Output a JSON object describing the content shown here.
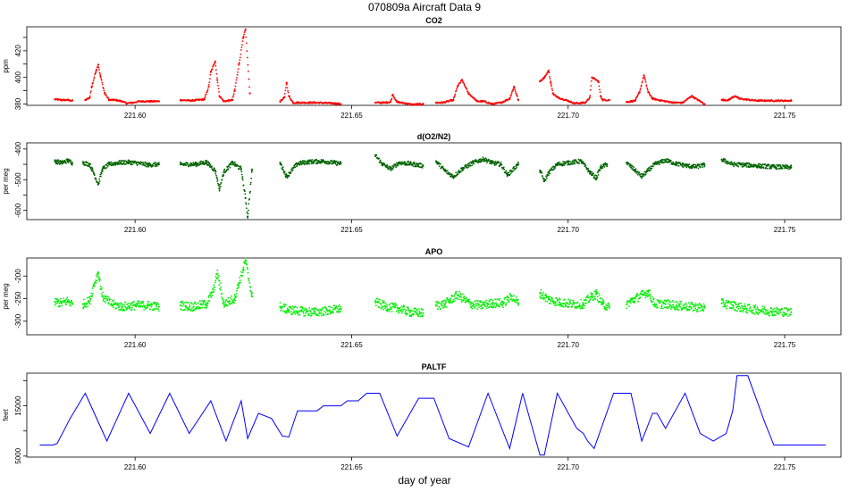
{
  "figure": {
    "title": "070809a   Aircraft Data 9",
    "xlabel": "day of year"
  },
  "chart_data": [
    {
      "type": "scatter",
      "title": "CO2",
      "ylabel": "ppm",
      "xlim": [
        221.575,
        221.763
      ],
      "ylim": [
        379.0,
        438.0
      ],
      "xticks": [
        221.6,
        221.65,
        221.7,
        221.75
      ],
      "xtick_labels": [
        "221.60",
        "221.65",
        "221.70",
        "221.75"
      ],
      "yticks": [
        380,
        400,
        420
      ],
      "ytick_labels": [
        "380",
        "400",
        "420"
      ],
      "yticks_minor": [
        390,
        410,
        430
      ],
      "color": "#ff0000",
      "series": [
        {
          "x": [
            221.5815,
            221.583,
            221.5845,
            221.5855
          ],
          "y": [
            383.5,
            383.0,
            383.0,
            382.5
          ]
        },
        {
          "x": [
            221.5885,
            221.5895,
            221.59,
            221.591,
            221.5915,
            221.592,
            221.593,
            221.594,
            221.5955,
            221.597,
            221.598,
            221.5995,
            221.601,
            221.603,
            221.6055
          ],
          "y": [
            383.0,
            384.5,
            393.0,
            405.0,
            409.5,
            401.0,
            388.0,
            383.0,
            383.0,
            382.0,
            380.5,
            381.0,
            382.0,
            382.0,
            382.0
          ]
        },
        {
          "x": [
            221.6105,
            221.613,
            221.616,
            221.617,
            221.6175,
            221.6185,
            221.619,
            221.6195,
            221.6205,
            221.6225,
            221.623,
            221.624,
            221.625,
            221.6255,
            221.6265
          ],
          "y": [
            383.0,
            382.5,
            383.5,
            393.0,
            404.0,
            412.0,
            398.0,
            386.0,
            382.0,
            383.0,
            390.0,
            410.0,
            430.0,
            436.0,
            388.0
          ]
        },
        {
          "x": [
            221.6335,
            221.6345,
            221.635,
            221.6355,
            221.6365,
            221.6385,
            221.642,
            221.646,
            221.6475
          ],
          "y": [
            382.0,
            385.0,
            396.0,
            386.0,
            381.0,
            381.0,
            381.0,
            380.5,
            380.0
          ]
        },
        {
          "x": [
            221.6555,
            221.6575,
            221.659,
            221.6595,
            221.6605,
            221.6625,
            221.664,
            221.6665
          ],
          "y": [
            381.0,
            381.0,
            381.5,
            387.0,
            381.5,
            380.5,
            379.5,
            380.0
          ]
        },
        {
          "x": [
            221.6695,
            221.671,
            221.6735,
            221.6745,
            221.6755,
            221.677,
            221.679,
            221.6805,
            221.6825,
            221.6845,
            221.6865,
            221.6875,
            221.6885
          ],
          "y": [
            381.0,
            381.0,
            383.0,
            393.5,
            398.0,
            388.0,
            382.0,
            382.0,
            380.0,
            381.0,
            384.0,
            393.0,
            383.0
          ]
        },
        {
          "x": [
            221.6935,
            221.6945,
            221.6955,
            221.696,
            221.6965,
            221.6975,
            221.6995,
            221.7015,
            221.704,
            221.705,
            221.7055,
            221.707,
            221.7075,
            221.708,
            221.7095
          ],
          "y": [
            397.0,
            400.0,
            405.0,
            396.0,
            388.0,
            385.0,
            383.0,
            380.5,
            381.0,
            385.0,
            400.0,
            397.0,
            386.0,
            383.0,
            383.0
          ]
        },
        {
          "x": [
            221.7135,
            221.7155,
            221.7165,
            221.7175,
            221.7185,
            221.7195,
            221.7225,
            221.7245,
            221.7265,
            221.7285,
            221.7315
          ],
          "y": [
            381.5,
            382.5,
            389.0,
            401.5,
            389.0,
            384.0,
            382.0,
            381.0,
            381.0,
            386.0,
            380.0
          ]
        },
        {
          "x": [
            221.7355,
            221.737,
            221.7385,
            221.7395,
            221.7435,
            221.748,
            221.7515
          ],
          "y": [
            383.0,
            383.0,
            386.0,
            384.0,
            382.5,
            382.5,
            382.5
          ]
        }
      ]
    },
    {
      "type": "scatter",
      "title": "d(O2/N2)",
      "ylabel": "per meg",
      "xlim": [
        221.575,
        221.763
      ],
      "ylim": [
        -630,
        -380
      ],
      "xticks": [
        221.6,
        221.65,
        221.7,
        221.75
      ],
      "xtick_labels": [
        "221.60",
        "221.65",
        "221.70",
        "221.75"
      ],
      "yticks": [
        -600,
        -500,
        -400
      ],
      "ytick_labels": [
        "-600",
        "-500",
        "-400"
      ],
      "yticks_minor": [
        -550,
        -450
      ],
      "color": "#006400",
      "series": [
        {
          "x": [
            221.5815,
            221.583,
            221.5845,
            221.5855
          ],
          "y": [
            -440,
            -445,
            -438,
            -445
          ]
        },
        {
          "x": [
            221.588,
            221.5895,
            221.5905,
            221.5915,
            221.5925,
            221.594,
            221.596,
            221.5985,
            221.601,
            221.603,
            221.6055
          ],
          "y": [
            -445,
            -450,
            -480,
            -515,
            -465,
            -450,
            -445,
            -443,
            -447,
            -452,
            -450
          ]
        },
        {
          "x": [
            221.6105,
            221.614,
            221.6165,
            221.6185,
            221.6195,
            221.6205,
            221.6225,
            221.6245,
            221.6255,
            221.626,
            221.627
          ],
          "y": [
            -450,
            -450,
            -443,
            -470,
            -530,
            -475,
            -445,
            -465,
            -560,
            -620,
            -470
          ]
        },
        {
          "x": [
            221.6335,
            221.635,
            221.6375,
            221.64,
            221.6435,
            221.646,
            221.6475
          ],
          "y": [
            -445,
            -490,
            -448,
            -442,
            -440,
            -445,
            -448
          ]
        },
        {
          "x": [
            221.6555,
            221.657,
            221.659,
            221.661,
            221.6635,
            221.6665
          ],
          "y": [
            -420,
            -448,
            -465,
            -445,
            -448,
            -455
          ]
        },
        {
          "x": [
            221.6695,
            221.6715,
            221.6735,
            221.6755,
            221.678,
            221.6805,
            221.6825,
            221.6845,
            221.686,
            221.6885
          ],
          "y": [
            -440,
            -470,
            -490,
            -465,
            -445,
            -433,
            -445,
            -450,
            -485,
            -450
          ]
        },
        {
          "x": [
            221.6935,
            221.6945,
            221.6955,
            221.6975,
            221.7,
            221.703,
            221.705,
            221.7065,
            221.7075,
            221.709
          ],
          "y": [
            -470,
            -505,
            -478,
            -450,
            -445,
            -440,
            -475,
            -495,
            -460,
            -450
          ]
        },
        {
          "x": [
            221.7135,
            221.7155,
            221.717,
            221.7185,
            221.72,
            221.7225,
            221.725,
            221.7275,
            221.7295,
            221.7315
          ],
          "y": [
            -445,
            -470,
            -490,
            -470,
            -450,
            -437,
            -448,
            -455,
            -458,
            -452
          ]
        },
        {
          "x": [
            221.7355,
            221.738,
            221.741,
            221.744,
            221.747,
            221.7515
          ],
          "y": [
            -435,
            -450,
            -452,
            -455,
            -458,
            -460
          ]
        }
      ]
    },
    {
      "type": "scatter",
      "title": "APO",
      "ylabel": "per meg",
      "xlim": [
        221.575,
        221.763
      ],
      "ylim": [
        -330,
        -160
      ],
      "xticks": [
        221.6,
        221.65,
        221.7,
        221.75
      ],
      "xtick_labels": [
        "221.60",
        "221.65",
        "221.70",
        "221.75"
      ],
      "yticks": [
        -300,
        -250,
        -200
      ],
      "ytick_labels": [
        "-300",
        "-250",
        "-200"
      ],
      "color": "#00ee00",
      "series": [
        {
          "x": [
            221.5815,
            221.583,
            221.5845,
            221.5855
          ],
          "y": [
            -257,
            -260,
            -255,
            -262
          ]
        },
        {
          "x": [
            221.588,
            221.5895,
            221.5905,
            221.5915,
            221.5925,
            221.5945,
            221.597,
            221.6,
            221.603,
            221.6055
          ],
          "y": [
            -262,
            -255,
            -220,
            -193,
            -245,
            -262,
            -268,
            -265,
            -265,
            -268
          ]
        },
        {
          "x": [
            221.6105,
            221.6135,
            221.6165,
            221.618,
            221.619,
            221.6205,
            221.623,
            221.624,
            221.625,
            221.6255,
            221.627
          ],
          "y": [
            -265,
            -268,
            -262,
            -235,
            -195,
            -262,
            -250,
            -215,
            -185,
            -165,
            -245
          ]
        },
        {
          "x": [
            221.6335,
            221.6355,
            221.6385,
            221.6415,
            221.6445,
            221.6475
          ],
          "y": [
            -268,
            -275,
            -278,
            -280,
            -277,
            -272
          ]
        },
        {
          "x": [
            221.6555,
            221.658,
            221.661,
            221.6635,
            221.6665
          ],
          "y": [
            -258,
            -268,
            -272,
            -280,
            -282
          ]
        },
        {
          "x": [
            221.6695,
            221.6715,
            221.6745,
            221.6775,
            221.68,
            221.6825,
            221.685,
            221.687,
            221.6885
          ],
          "y": [
            -265,
            -262,
            -242,
            -262,
            -265,
            -260,
            -260,
            -245,
            -260
          ]
        },
        {
          "x": [
            221.6935,
            221.6955,
            221.698,
            221.701,
            221.7035,
            221.7055,
            221.7065,
            221.708,
            221.7095
          ],
          "y": [
            -238,
            -252,
            -258,
            -262,
            -262,
            -245,
            -240,
            -262,
            -270
          ]
        },
        {
          "x": [
            221.7135,
            221.7155,
            221.7175,
            221.7185,
            221.72,
            221.7225,
            221.725,
            221.728,
            221.7315
          ],
          "y": [
            -262,
            -250,
            -240,
            -235,
            -262,
            -262,
            -265,
            -268,
            -270
          ]
        },
        {
          "x": [
            221.7355,
            221.738,
            221.741,
            221.744,
            221.747,
            221.7515
          ],
          "y": [
            -260,
            -265,
            -272,
            -275,
            -278,
            -280
          ]
        }
      ]
    },
    {
      "type": "line",
      "title": "PALTF",
      "ylabel": "feet",
      "xlim": [
        221.575,
        221.763
      ],
      "ylim": [
        4800,
        21500
      ],
      "xticks": [
        221.6,
        221.65,
        221.7,
        221.75
      ],
      "xtick_labels": [
        "221.60",
        "221.65",
        "221.70",
        "221.75"
      ],
      "yticks": [
        5000,
        15000
      ],
      "ytick_labels": [
        "5000",
        "15000"
      ],
      "yticks_minor": [
        10000,
        20000
      ],
      "color": "#0000ff",
      "series": [
        {
          "x": [
            221.578,
            221.581,
            221.582,
            221.585,
            221.5885,
            221.5935,
            221.5985,
            221.6035,
            221.608,
            221.6125,
            221.6175,
            221.621,
            221.6225,
            221.6245,
            221.626,
            221.6285,
            221.6315,
            221.634,
            221.6355,
            221.6375,
            221.64,
            221.642,
            221.6435,
            221.6455,
            221.6475,
            221.649,
            221.6515,
            221.6535,
            221.6565,
            221.6605,
            221.6655,
            221.669,
            221.6725,
            221.677,
            221.6815,
            221.6865,
            221.6895,
            221.6935,
            221.6945,
            221.6975,
            221.702,
            221.7035,
            221.7045,
            221.706,
            221.7105,
            221.7145,
            221.717,
            221.7195,
            221.7205,
            221.7225,
            221.727,
            221.7305,
            221.7335,
            221.7365,
            221.738,
            221.739,
            221.7415,
            221.7455,
            221.7475,
            221.7515,
            221.7545,
            221.7595
          ],
          "y": [
            7200,
            7200,
            7500,
            12500,
            17500,
            8000,
            17500,
            9500,
            17500,
            9500,
            16000,
            8000,
            11500,
            16000,
            8500,
            13500,
            12500,
            9000,
            8800,
            14000,
            14000,
            14000,
            15000,
            15000,
            15000,
            16000,
            16000,
            17500,
            17500,
            9000,
            16500,
            16500,
            8500,
            6800,
            17500,
            6500,
            17500,
            5200,
            5200,
            17500,
            10500,
            9500,
            8000,
            6500,
            17500,
            17500,
            8000,
            13500,
            13500,
            10500,
            17500,
            9500,
            8000,
            9500,
            14000,
            21000,
            21000,
            11500,
            7200,
            7200,
            7200,
            7200
          ]
        }
      ]
    }
  ]
}
